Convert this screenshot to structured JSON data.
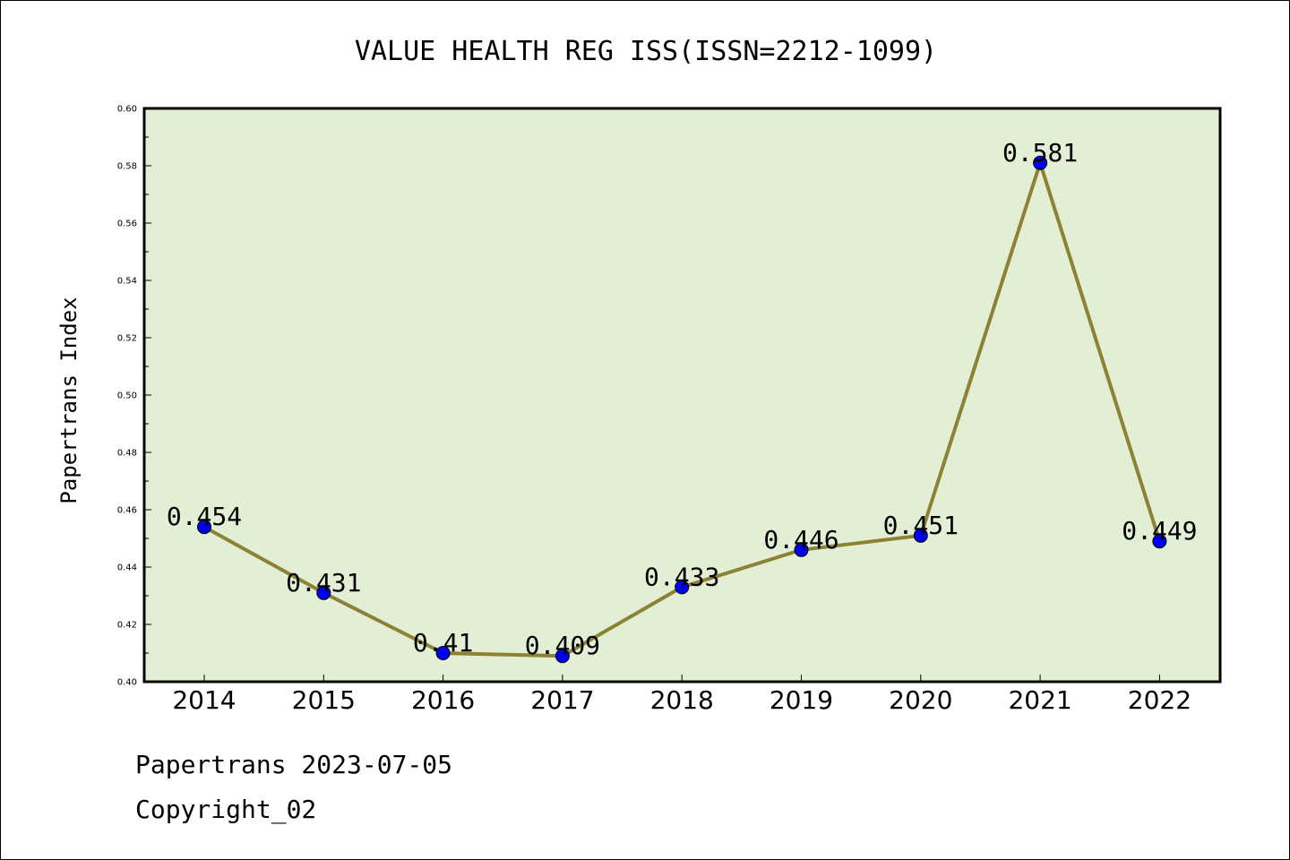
{
  "chart_data": {
    "type": "line",
    "title": "VALUE HEALTH REG ISS(ISSN=2212-1099)",
    "xlabel": "",
    "ylabel": "Papertrans Index",
    "categories": [
      "2014",
      "2015",
      "2016",
      "2017",
      "2018",
      "2019",
      "2020",
      "2021",
      "2022"
    ],
    "series": [
      {
        "values": [
          0.454,
          0.431,
          0.41,
          0.409,
          0.433,
          0.446,
          0.451,
          0.581,
          0.449
        ],
        "data_labels": [
          "0.454",
          "0.431",
          "0.41",
          "0.409",
          "0.433",
          "0.446",
          "0.451",
          "0.581",
          "0.449"
        ],
        "line_color": "#8B8235",
        "marker_color": "#0000EE"
      }
    ],
    "ylim": [
      0.4,
      0.6
    ],
    "yticks": [
      0.4,
      0.42,
      0.44,
      0.46,
      0.48,
      0.5,
      0.52,
      0.54,
      0.56,
      0.58,
      0.6
    ],
    "ytick_labels": [
      "0.40",
      "0.42",
      "0.44",
      "0.46",
      "0.48",
      "0.50",
      "0.52",
      "0.54",
      "0.56",
      "0.58",
      "0.60"
    ],
    "grid": false,
    "plot_background": "#E2EFD5"
  },
  "footer": {
    "date_line": "Papertrans 2023-07-05",
    "copyright_line": "Copyright_02"
  }
}
